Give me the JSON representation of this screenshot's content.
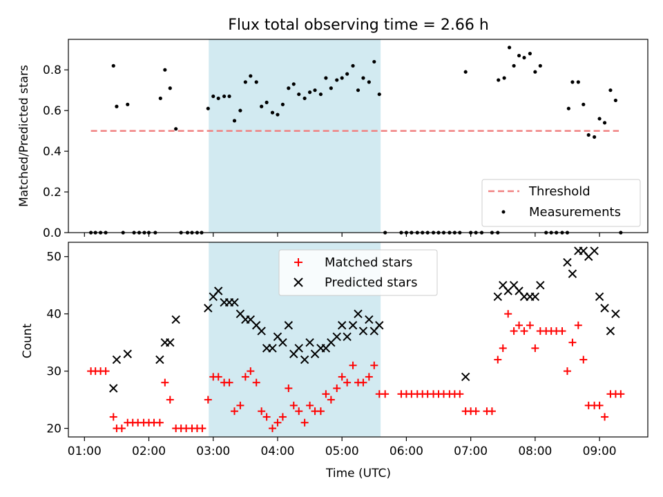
{
  "chart_data": [
    {
      "type": "scatter",
      "title": "Flux total observing time = 2.66 h",
      "xlabel": "",
      "ylabel": "Matched/Predicted stars",
      "xlim": [
        0.75,
        9.75
      ],
      "ylim": [
        0,
        0.95
      ],
      "yticks": [
        0.0,
        0.2,
        0.4,
        0.6,
        0.8
      ],
      "ytick_labels": [
        "0.0",
        "0.2",
        "0.4",
        "0.6",
        "0.8"
      ],
      "shaded_interval": [
        2.93,
        5.6
      ],
      "shaded_color": "#add8e6",
      "threshold": {
        "name": "Threshold",
        "y": 0.5,
        "x": [
          1.1,
          9.3
        ],
        "color": "#f08080",
        "style": "dashed"
      },
      "series": [
        {
          "name": "Measurements",
          "color": "#000000",
          "marker": "dot",
          "points": [
            [
              1.1,
              0
            ],
            [
              1.17,
              0
            ],
            [
              1.25,
              0
            ],
            [
              1.33,
              0
            ],
            [
              1.45,
              0.82
            ],
            [
              1.5,
              0.62
            ],
            [
              1.6,
              0
            ],
            [
              1.67,
              0.63
            ],
            [
              1.77,
              0
            ],
            [
              1.85,
              0
            ],
            [
              1.93,
              0
            ],
            [
              2.0,
              0
            ],
            [
              2.1,
              0
            ],
            [
              2.18,
              0.66
            ],
            [
              2.25,
              0.8
            ],
            [
              2.33,
              0.71
            ],
            [
              2.42,
              0.51
            ],
            [
              2.5,
              0
            ],
            [
              2.6,
              0
            ],
            [
              2.67,
              0
            ],
            [
              2.75,
              0
            ],
            [
              2.82,
              0
            ],
            [
              2.92,
              0.61
            ],
            [
              3.0,
              0.67
            ],
            [
              3.08,
              0.66
            ],
            [
              3.17,
              0.67
            ],
            [
              3.25,
              0.67
            ],
            [
              3.33,
              0.55
            ],
            [
              3.42,
              0.6
            ],
            [
              3.5,
              0.74
            ],
            [
              3.58,
              0.77
            ],
            [
              3.67,
              0.74
            ],
            [
              3.75,
              0.62
            ],
            [
              3.83,
              0.64
            ],
            [
              3.92,
              0.59
            ],
            [
              4.0,
              0.58
            ],
            [
              4.08,
              0.63
            ],
            [
              4.17,
              0.71
            ],
            [
              4.25,
              0.73
            ],
            [
              4.33,
              0.68
            ],
            [
              4.42,
              0.66
            ],
            [
              4.5,
              0.69
            ],
            [
              4.58,
              0.7
            ],
            [
              4.67,
              0.68
            ],
            [
              4.75,
              0.76
            ],
            [
              4.83,
              0.71
            ],
            [
              4.92,
              0.75
            ],
            [
              5.0,
              0.76
            ],
            [
              5.08,
              0.78
            ],
            [
              5.17,
              0.82
            ],
            [
              5.25,
              0.7
            ],
            [
              5.33,
              0.76
            ],
            [
              5.42,
              0.74
            ],
            [
              5.5,
              0.84
            ],
            [
              5.58,
              0.68
            ],
            [
              5.67,
              0
            ],
            [
              5.92,
              0
            ],
            [
              6.0,
              0
            ],
            [
              6.08,
              0
            ],
            [
              6.17,
              0
            ],
            [
              6.25,
              0
            ],
            [
              6.33,
              0
            ],
            [
              6.42,
              0
            ],
            [
              6.5,
              0
            ],
            [
              6.58,
              0
            ],
            [
              6.67,
              0
            ],
            [
              6.75,
              0
            ],
            [
              6.83,
              0
            ],
            [
              6.92,
              0.79
            ],
            [
              7.0,
              0
            ],
            [
              7.08,
              0
            ],
            [
              7.17,
              0
            ],
            [
              7.33,
              0
            ],
            [
              7.42,
              0
            ],
            [
              7.43,
              0.75
            ],
            [
              7.52,
              0.76
            ],
            [
              7.6,
              0.91
            ],
            [
              7.67,
              0.82
            ],
            [
              7.75,
              0.87
            ],
            [
              7.83,
              0.86
            ],
            [
              7.92,
              0.88
            ],
            [
              8.0,
              0.79
            ],
            [
              8.08,
              0.82
            ],
            [
              8.17,
              0
            ],
            [
              8.25,
              0
            ],
            [
              8.33,
              0
            ],
            [
              8.42,
              0
            ],
            [
              8.5,
              0
            ],
            [
              8.52,
              0.61
            ],
            [
              8.58,
              0.74
            ],
            [
              8.67,
              0.74
            ],
            [
              8.75,
              0.63
            ],
            [
              8.83,
              0.48
            ],
            [
              8.92,
              0.47
            ],
            [
              9.0,
              0.56
            ],
            [
              9.08,
              0.54
            ],
            [
              9.17,
              0.7
            ],
            [
              9.25,
              0.65
            ],
            [
              9.33,
              0
            ]
          ]
        }
      ],
      "legend": {
        "entries": [
          "Threshold",
          "Measurements"
        ],
        "position": "lower-right"
      }
    },
    {
      "type": "scatter",
      "title": "",
      "xlabel": "Time (UTC)",
      "ylabel": "Count",
      "xlim": [
        0.75,
        9.75
      ],
      "ylim": [
        18.5,
        52.5
      ],
      "xticks": [
        1,
        2,
        3,
        4,
        5,
        6,
        7,
        8,
        9
      ],
      "xtick_labels": [
        "01:00",
        "02:00",
        "03:00",
        "04:00",
        "05:00",
        "06:00",
        "07:00",
        "08:00",
        "09:00"
      ],
      "yticks": [
        20,
        30,
        40,
        50
      ],
      "ytick_labels": [
        "20",
        "30",
        "40",
        "50"
      ],
      "shaded_interval": [
        2.93,
        5.6
      ],
      "shaded_color": "#add8e6",
      "series": [
        {
          "name": "Matched stars",
          "color": "#ff0000",
          "marker": "plus",
          "points": [
            [
              1.1,
              30
            ],
            [
              1.17,
              30
            ],
            [
              1.25,
              30
            ],
            [
              1.33,
              30
            ],
            [
              1.45,
              22
            ],
            [
              1.5,
              20
            ],
            [
              1.58,
              20
            ],
            [
              1.67,
              21
            ],
            [
              1.75,
              21
            ],
            [
              1.83,
              21
            ],
            [
              1.92,
              21
            ],
            [
              2.0,
              21
            ],
            [
              2.08,
              21
            ],
            [
              2.17,
              21
            ],
            [
              2.25,
              28
            ],
            [
              2.33,
              25
            ],
            [
              2.42,
              20
            ],
            [
              2.5,
              20
            ],
            [
              2.58,
              20
            ],
            [
              2.67,
              20
            ],
            [
              2.75,
              20
            ],
            [
              2.83,
              20
            ],
            [
              2.92,
              25
            ],
            [
              3.0,
              29
            ],
            [
              3.08,
              29
            ],
            [
              3.17,
              28
            ],
            [
              3.25,
              28
            ],
            [
              3.33,
              23
            ],
            [
              3.42,
              24
            ],
            [
              3.5,
              29
            ],
            [
              3.58,
              30
            ],
            [
              3.67,
              28
            ],
            [
              3.75,
              23
            ],
            [
              3.83,
              22
            ],
            [
              3.92,
              20
            ],
            [
              4.0,
              21
            ],
            [
              4.08,
              22
            ],
            [
              4.17,
              27
            ],
            [
              4.25,
              24
            ],
            [
              4.33,
              23
            ],
            [
              4.42,
              21
            ],
            [
              4.5,
              24
            ],
            [
              4.58,
              23
            ],
            [
              4.67,
              23
            ],
            [
              4.75,
              26
            ],
            [
              4.83,
              25
            ],
            [
              4.92,
              27
            ],
            [
              5.0,
              29
            ],
            [
              5.08,
              28
            ],
            [
              5.17,
              31
            ],
            [
              5.25,
              28
            ],
            [
              5.33,
              28
            ],
            [
              5.42,
              29
            ],
            [
              5.5,
              31
            ],
            [
              5.58,
              26
            ],
            [
              5.67,
              26
            ],
            [
              5.92,
              26
            ],
            [
              6.0,
              26
            ],
            [
              6.08,
              26
            ],
            [
              6.17,
              26
            ],
            [
              6.25,
              26
            ],
            [
              6.33,
              26
            ],
            [
              6.42,
              26
            ],
            [
              6.5,
              26
            ],
            [
              6.58,
              26
            ],
            [
              6.67,
              26
            ],
            [
              6.75,
              26
            ],
            [
              6.83,
              26
            ],
            [
              6.92,
              23
            ],
            [
              7.0,
              23
            ],
            [
              7.08,
              23
            ],
            [
              7.25,
              23
            ],
            [
              7.33,
              23
            ],
            [
              7.42,
              32
            ],
            [
              7.5,
              34
            ],
            [
              7.58,
              40
            ],
            [
              7.67,
              37
            ],
            [
              7.75,
              38
            ],
            [
              7.83,
              37
            ],
            [
              7.92,
              38
            ],
            [
              8.0,
              34
            ],
            [
              8.08,
              37
            ],
            [
              8.17,
              37
            ],
            [
              8.25,
              37
            ],
            [
              8.33,
              37
            ],
            [
              8.42,
              37
            ],
            [
              8.5,
              30
            ],
            [
              8.58,
              35
            ],
            [
              8.67,
              38
            ],
            [
              8.75,
              32
            ],
            [
              8.83,
              24
            ],
            [
              8.92,
              24
            ],
            [
              9.0,
              24
            ],
            [
              9.08,
              22
            ],
            [
              9.17,
              26
            ],
            [
              9.25,
              26
            ],
            [
              9.33,
              26
            ]
          ]
        },
        {
          "name": "Predicted stars",
          "color": "#000000",
          "marker": "x",
          "points": [
            [
              1.45,
              27
            ],
            [
              1.5,
              32
            ],
            [
              1.67,
              33
            ],
            [
              2.17,
              32
            ],
            [
              2.25,
              35
            ],
            [
              2.33,
              35
            ],
            [
              2.42,
              39
            ],
            [
              2.92,
              41
            ],
            [
              3.0,
              43
            ],
            [
              3.08,
              44
            ],
            [
              3.17,
              42
            ],
            [
              3.25,
              42
            ],
            [
              3.33,
              42
            ],
            [
              3.42,
              40
            ],
            [
              3.5,
              39
            ],
            [
              3.58,
              39
            ],
            [
              3.67,
              38
            ],
            [
              3.75,
              37
            ],
            [
              3.83,
              34
            ],
            [
              3.92,
              34
            ],
            [
              4.0,
              36
            ],
            [
              4.08,
              35
            ],
            [
              4.17,
              38
            ],
            [
              4.25,
              33
            ],
            [
              4.33,
              34
            ],
            [
              4.42,
              32
            ],
            [
              4.5,
              35
            ],
            [
              4.58,
              33
            ],
            [
              4.67,
              34
            ],
            [
              4.75,
              34
            ],
            [
              4.83,
              35
            ],
            [
              4.92,
              36
            ],
            [
              5.0,
              38
            ],
            [
              5.08,
              36
            ],
            [
              5.17,
              38
            ],
            [
              5.25,
              40
            ],
            [
              5.33,
              37
            ],
            [
              5.42,
              39
            ],
            [
              5.5,
              37
            ],
            [
              5.58,
              38
            ],
            [
              6.92,
              29
            ],
            [
              7.42,
              43
            ],
            [
              7.5,
              45
            ],
            [
              7.58,
              44
            ],
            [
              7.67,
              45
            ],
            [
              7.75,
              44
            ],
            [
              7.83,
              43
            ],
            [
              7.92,
              43
            ],
            [
              8.0,
              43
            ],
            [
              8.08,
              45
            ],
            [
              8.5,
              49
            ],
            [
              8.58,
              47
            ],
            [
              8.67,
              51
            ],
            [
              8.75,
              51
            ],
            [
              8.83,
              50
            ],
            [
              8.92,
              51
            ],
            [
              9.0,
              43
            ],
            [
              9.08,
              41
            ],
            [
              9.17,
              37
            ],
            [
              9.25,
              40
            ]
          ]
        }
      ],
      "legend": {
        "entries": [
          "Matched stars",
          "Predicted stars"
        ],
        "position": "upper-center"
      }
    }
  ]
}
